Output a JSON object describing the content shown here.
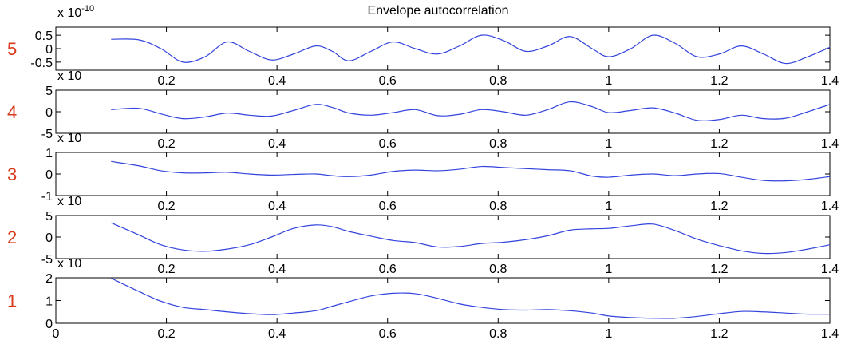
{
  "chart_data": {
    "type": "line",
    "title": "Envelope autocorrelation",
    "line_color": "#3344dd",
    "row_number_color": "#d93a1c",
    "xlim": [
      0,
      1.4
    ],
    "panels": [
      {
        "row_label": "5",
        "exponent_label": "x 10",
        "exponent_power": "-10",
        "ylim": [
          -0.8,
          0.8
        ],
        "yticks": [
          "0.5",
          "0",
          "-0.5"
        ],
        "ytick_values": [
          0.5,
          0,
          -0.5
        ],
        "xticks": [
          "0.2",
          "0.4",
          "0.6",
          "0.8",
          "1",
          "1.2",
          "1.4"
        ],
        "xtick_values": [
          0.2,
          0.4,
          0.6,
          0.8,
          1,
          1.2,
          1.4
        ],
        "series": [
          {
            "x": [
              0.1,
              0.15,
              0.19,
              0.23,
              0.27,
              0.31,
              0.35,
              0.39,
              0.43,
              0.47,
              0.5,
              0.53,
              0.57,
              0.61,
              0.65,
              0.69,
              0.73,
              0.77,
              0.81,
              0.85,
              0.89,
              0.93,
              0.97,
              1.0,
              1.04,
              1.08,
              1.12,
              1.16,
              1.2,
              1.24,
              1.28,
              1.32,
              1.36,
              1.4
            ],
            "y": [
              0.35,
              0.33,
              0.0,
              -0.5,
              -0.3,
              0.25,
              -0.1,
              -0.42,
              -0.2,
              0.1,
              -0.1,
              -0.45,
              -0.1,
              0.25,
              0.0,
              -0.2,
              0.1,
              0.5,
              0.3,
              -0.1,
              0.1,
              0.45,
              0.0,
              -0.3,
              0.0,
              0.5,
              0.2,
              -0.3,
              -0.2,
              0.1,
              -0.2,
              -0.55,
              -0.3,
              0.05
            ]
          }
        ]
      },
      {
        "row_label": "4",
        "exponent_label": "x 10",
        "exponent_power": "",
        "ylim": [
          -5,
          5
        ],
        "yticks": [
          "5",
          "0",
          "-5"
        ],
        "ytick_values": [
          5,
          0,
          -5
        ],
        "xticks": [
          "0.2",
          "0.4",
          "0.6",
          "0.8",
          "1",
          "1.2",
          "1.4"
        ],
        "xtick_values": [
          0.2,
          0.4,
          0.6,
          0.8,
          1,
          1.2,
          1.4
        ],
        "series": [
          {
            "x": [
              0.1,
              0.15,
              0.19,
              0.23,
              0.27,
              0.31,
              0.35,
              0.39,
              0.43,
              0.47,
              0.5,
              0.53,
              0.57,
              0.61,
              0.65,
              0.69,
              0.73,
              0.77,
              0.81,
              0.85,
              0.89,
              0.93,
              0.97,
              1.0,
              1.04,
              1.08,
              1.12,
              1.16,
              1.2,
              1.24,
              1.28,
              1.32,
              1.36,
              1.4
            ],
            "y": [
              0.5,
              0.8,
              -0.5,
              -1.6,
              -1.2,
              -0.3,
              -0.8,
              -1.0,
              0.3,
              1.7,
              1.0,
              -0.3,
              -0.8,
              -0.2,
              0.5,
              -0.9,
              -0.6,
              0.5,
              0.0,
              -0.8,
              0.5,
              2.3,
              1.2,
              -0.2,
              0.3,
              0.9,
              -0.3,
              -2.0,
              -1.8,
              -0.8,
              -1.6,
              -1.5,
              0.0,
              1.7
            ]
          }
        ]
      },
      {
        "row_label": "3",
        "exponent_label": "x 10",
        "exponent_power": "",
        "ylim": [
          -1,
          1
        ],
        "yticks": [
          "1",
          "0",
          "-1"
        ],
        "ytick_values": [
          1,
          0,
          -1
        ],
        "xticks": [
          "0.2",
          "0.4",
          "0.6",
          "0.8",
          "1",
          "1.2",
          "1.4"
        ],
        "xtick_values": [
          0.2,
          0.4,
          0.6,
          0.8,
          1,
          1.2,
          1.4
        ],
        "series": [
          {
            "x": [
              0.1,
              0.15,
              0.19,
              0.23,
              0.27,
              0.31,
              0.35,
              0.39,
              0.43,
              0.47,
              0.5,
              0.53,
              0.57,
              0.61,
              0.65,
              0.69,
              0.73,
              0.77,
              0.81,
              0.85,
              0.89,
              0.93,
              0.97,
              1.0,
              1.04,
              1.08,
              1.12,
              1.16,
              1.2,
              1.24,
              1.28,
              1.32,
              1.36,
              1.4
            ],
            "y": [
              0.58,
              0.38,
              0.15,
              0.05,
              0.05,
              0.08,
              0.0,
              -0.05,
              -0.02,
              0.0,
              -0.08,
              -0.12,
              -0.05,
              0.12,
              0.18,
              0.15,
              0.22,
              0.35,
              0.3,
              0.25,
              0.2,
              0.15,
              -0.1,
              -0.15,
              -0.05,
              0.0,
              -0.08,
              0.0,
              0.02,
              -0.15,
              -0.3,
              -0.32,
              -0.25,
              -0.12
            ]
          }
        ]
      },
      {
        "row_label": "2",
        "exponent_label": "x 10",
        "exponent_power": "",
        "ylim": [
          -5,
          5
        ],
        "yticks": [
          "5",
          "0",
          "-5"
        ],
        "ytick_values": [
          5,
          0,
          -5
        ],
        "xticks": [
          "0.2",
          "0.4",
          "0.6",
          "0.8",
          "1",
          "1.2",
          "1.4"
        ],
        "xtick_values": [
          0.2,
          0.4,
          0.6,
          0.8,
          1,
          1.2,
          1.4
        ],
        "series": [
          {
            "x": [
              0.1,
              0.15,
              0.19,
              0.23,
              0.27,
              0.31,
              0.35,
              0.39,
              0.43,
              0.47,
              0.5,
              0.53,
              0.57,
              0.61,
              0.65,
              0.69,
              0.73,
              0.77,
              0.81,
              0.85,
              0.89,
              0.93,
              0.97,
              1.0,
              1.04,
              1.08,
              1.12,
              1.16,
              1.2,
              1.24,
              1.28,
              1.32,
              1.36,
              1.4
            ],
            "y": [
              3.3,
              0.5,
              -1.8,
              -3.0,
              -3.3,
              -2.8,
              -1.8,
              0.0,
              2.0,
              2.8,
              2.4,
              1.3,
              0.2,
              -0.8,
              -1.3,
              -2.3,
              -2.2,
              -1.5,
              -1.2,
              -0.6,
              0.3,
              1.6,
              1.9,
              2.0,
              2.6,
              3.0,
              1.5,
              -0.5,
              -2.0,
              -3.2,
              -3.8,
              -3.6,
              -2.8,
              -1.8
            ]
          }
        ]
      },
      {
        "row_label": "1",
        "exponent_label": "x 10",
        "exponent_power": "",
        "ylim": [
          0,
          2
        ],
        "yticks": [
          "2",
          "1",
          "0"
        ],
        "ytick_values": [
          2,
          1,
          0
        ],
        "xticks": [
          "0",
          "0.2",
          "0.4",
          "0.6",
          "0.8",
          "1",
          "1.2",
          "1.4"
        ],
        "xtick_values": [
          0,
          0.2,
          0.4,
          0.6,
          0.8,
          1,
          1.2,
          1.4
        ],
        "series": [
          {
            "x": [
              0.1,
              0.15,
              0.19,
              0.23,
              0.27,
              0.31,
              0.35,
              0.39,
              0.43,
              0.47,
              0.5,
              0.53,
              0.57,
              0.61,
              0.65,
              0.69,
              0.73,
              0.77,
              0.81,
              0.85,
              0.89,
              0.93,
              0.97,
              1.0,
              1.04,
              1.08,
              1.12,
              1.16,
              1.2,
              1.24,
              1.28,
              1.32,
              1.36,
              1.4
            ],
            "y": [
              1.98,
              1.4,
              0.97,
              0.7,
              0.6,
              0.5,
              0.42,
              0.38,
              0.45,
              0.55,
              0.75,
              0.95,
              1.2,
              1.32,
              1.3,
              1.1,
              0.85,
              0.7,
              0.6,
              0.58,
              0.6,
              0.55,
              0.45,
              0.32,
              0.25,
              0.22,
              0.22,
              0.3,
              0.42,
              0.52,
              0.5,
              0.45,
              0.4,
              0.4
            ]
          }
        ]
      }
    ]
  }
}
